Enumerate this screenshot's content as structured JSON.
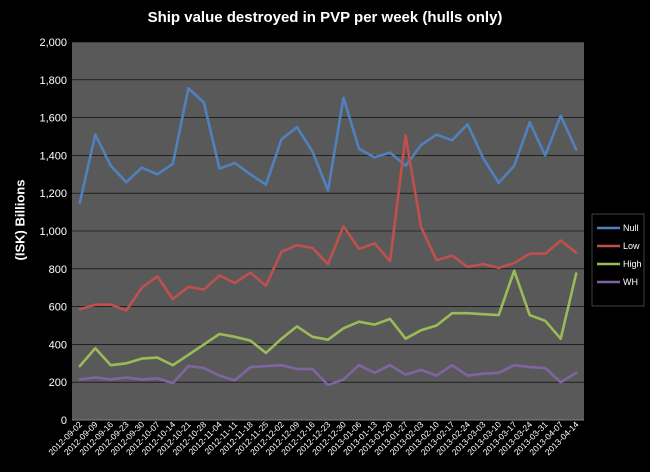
{
  "chart_data": {
    "type": "line",
    "title": "Ship value destroyed in PVP per week (hulls only)",
    "ylabel": "(ISK) Billions",
    "xlabel": "",
    "ylim": [
      0,
      2000
    ],
    "yticks": [
      "0",
      "200",
      "400",
      "600",
      "800",
      "1,000",
      "1,200",
      "1,400",
      "1,600",
      "1,800",
      "2,000"
    ],
    "grid": true,
    "legend": "right",
    "x": [
      "2012-09-02",
      "2012-09-09",
      "2012-09-16",
      "2012-09-23",
      "2012-09-30",
      "2012-10-07",
      "2012-10-14",
      "2012-10-21",
      "2012-10-28",
      "2012-11-04",
      "2012-11-11",
      "2012-11-18",
      "2012-11-25",
      "2012-12-02",
      "2012-12-09",
      "2012-12-16",
      "2012-12-23",
      "2012-12-30",
      "2013-01-06",
      "2013-01-13",
      "2013-01-20",
      "2013-01-27",
      "2013-02-03",
      "2013-02-10",
      "2013-02-17",
      "2013-02-24",
      "2013-03-03",
      "2013-03-10",
      "2013-03-17",
      "2013-03-24",
      "2013-03-31",
      "2013-04-07",
      "2013-04-14"
    ],
    "series": [
      {
        "name": "Null",
        "color": "#4f81bd",
        "values": [
          1150,
          1510,
          1345,
          1258,
          1335,
          1300,
          1355,
          1755,
          1680,
          1330,
          1360,
          1300,
          1245,
          1485,
          1550,
          1420,
          1215,
          1705,
          1435,
          1390,
          1415,
          1345,
          1455,
          1510,
          1480,
          1565,
          1385,
          1255,
          1345,
          1575,
          1400,
          1610,
          1430
        ]
      },
      {
        "name": "Low",
        "color": "#c0504d",
        "values": [
          585,
          610,
          610,
          580,
          700,
          760,
          640,
          705,
          690,
          765,
          725,
          780,
          710,
          890,
          925,
          910,
          825,
          1025,
          905,
          935,
          840,
          1505,
          1020,
          845,
          870,
          810,
          825,
          805,
          830,
          880,
          880,
          950,
          885
        ]
      },
      {
        "name": "High",
        "color": "#9bbb59",
        "values": [
          285,
          380,
          290,
          300,
          325,
          330,
          290,
          345,
          400,
          455,
          440,
          420,
          355,
          430,
          495,
          440,
          425,
          485,
          520,
          505,
          535,
          430,
          475,
          500,
          565,
          565,
          560,
          555,
          790,
          555,
          525,
          430,
          775
        ]
      },
      {
        "name": "WH",
        "color": "#8064a2",
        "values": [
          215,
          225,
          215,
          225,
          215,
          220,
          195,
          285,
          275,
          235,
          210,
          280,
          285,
          290,
          270,
          270,
          185,
          215,
          290,
          250,
          290,
          240,
          265,
          235,
          290,
          235,
          245,
          250,
          290,
          280,
          275,
          200,
          250
        ]
      }
    ]
  }
}
